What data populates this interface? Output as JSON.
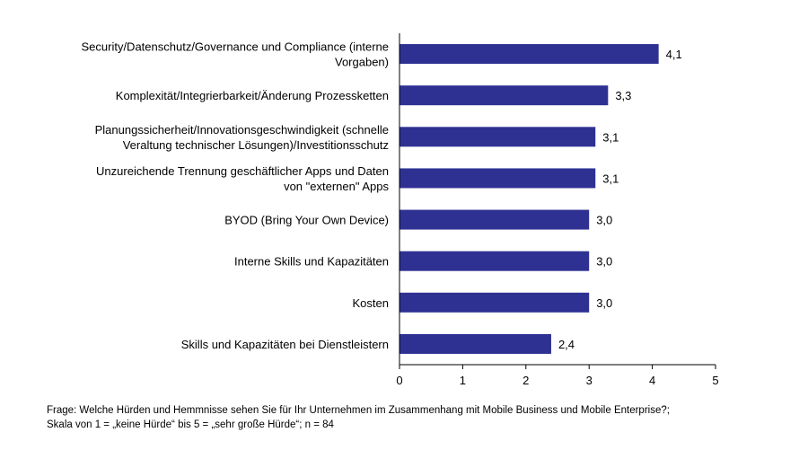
{
  "chart_data": {
    "type": "bar",
    "orientation": "horizontal",
    "categories": [
      [
        "Security/Datenschutz/Governance und Compliance (interne",
        "Vorgaben)"
      ],
      [
        "Komplexität/Integrierbarkeit/Änderung Prozessketten"
      ],
      [
        "Planungssicherheit/Innovationsgeschwindigkeit (schnelle",
        "Veraltung technischer Lösungen)/Investitionsschutz"
      ],
      [
        "Unzureichende Trennung geschäftlicher Apps und Daten",
        "von \"externen\" Apps"
      ],
      [
        "BYOD (Bring Your Own Device)"
      ],
      [
        "Interne Skills und Kapazitäten"
      ],
      [
        "Kosten"
      ],
      [
        "Skills und Kapazitäten bei Dienstleistern"
      ]
    ],
    "values": [
      4.1,
      3.3,
      3.1,
      3.1,
      3.0,
      3.0,
      3.0,
      2.4
    ],
    "value_labels": [
      "4,1",
      "3,3",
      "3,1",
      "3,1",
      "3,0",
      "3,0",
      "3,0",
      "2,4"
    ],
    "xlim": [
      0,
      5
    ],
    "xticks": [
      0,
      1,
      2,
      3,
      4,
      5
    ],
    "bar_color": "#2E3192",
    "grid": false,
    "legend": false
  },
  "footnote": {
    "line1": "Frage: Welche Hürden und Hemmnisse sehen Sie für Ihr Unternehmen im Zusammenhang mit Mobile Business und Mobile Enterprise?;",
    "line2": "Skala von 1 = „keine Hürde“ bis 5 = „sehr große Hürde“; n = 84"
  }
}
